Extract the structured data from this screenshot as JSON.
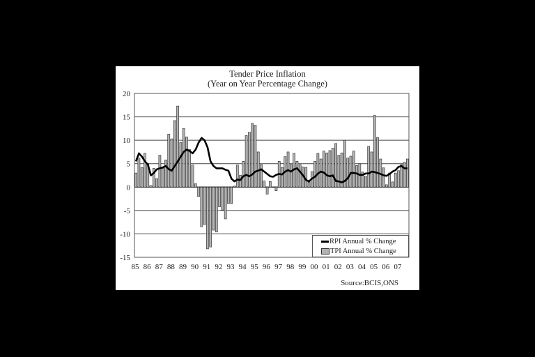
{
  "chart_data": {
    "type": "bar",
    "title": "Tender Price Inflation",
    "subtitle": "(Year on Year Percentage Change)",
    "xlabel": "",
    "ylabel": "",
    "ylim": [
      -15,
      20
    ],
    "yticks": [
      20,
      15,
      10,
      5,
      0,
      -5,
      -10,
      -15
    ],
    "grid": "horizontal",
    "legend_position": "lower right inside plot",
    "categories": [
      "85",
      "86",
      "87",
      "88",
      "89",
      "90",
      "91",
      "92",
      "93",
      "94",
      "95",
      "96",
      "97",
      "98",
      "99",
      "00",
      "01",
      "02",
      "03",
      "04",
      "05",
      "06",
      "07"
    ],
    "frequency": "quarterly",
    "series": [
      {
        "name": "TPI Annual % Change",
        "type": "bar",
        "color": "#b3b3b3",
        "values": [
          3.0,
          6.2,
          4.2,
          7.2,
          5.0,
          0.3,
          4.0,
          1.8,
          6.8,
          4.0,
          5.8,
          11.3,
          10.3,
          14.2,
          17.3,
          9.5,
          12.5,
          10.7,
          8.0,
          4.7,
          0.7,
          -2.0,
          -8.5,
          -8.0,
          -13.2,
          -12.8,
          -9.2,
          -9.6,
          -4.2,
          -4.9,
          -6.8,
          -3.5,
          -3.5,
          0.2,
          4.7,
          2.5,
          5.5,
          11.0,
          11.7,
          13.6,
          13.2,
          7.5,
          4.8,
          1.3,
          -1.5,
          1.2,
          0.0,
          -0.8,
          5.5,
          4.2,
          6.5,
          7.5,
          4.8,
          7.2,
          5.5,
          4.8,
          4.3,
          4.2,
          1.0,
          3.3,
          5.5,
          7.2,
          6.0,
          7.7,
          7.3,
          7.8,
          8.3,
          9.3,
          6.8,
          7.3,
          10.0,
          6.2,
          6.6,
          7.7,
          4.6,
          5.0,
          3.2,
          2.3,
          8.7,
          7.5,
          15.3,
          10.6,
          6.0,
          4.1,
          0.5,
          3.0,
          1.1,
          3.0,
          3.5,
          4.8,
          5.3,
          6.0
        ]
      },
      {
        "name": "RPI Annual % Change",
        "type": "line",
        "color": "#000000",
        "values": [
          5.5,
          7.2,
          6.5,
          5.5,
          4.8,
          2.5,
          3.0,
          3.8,
          4.0,
          4.2,
          4.5,
          3.8,
          3.5,
          4.5,
          5.5,
          6.5,
          7.5,
          8.0,
          7.7,
          7.2,
          8.0,
          9.5,
          10.5,
          10.0,
          8.5,
          5.5,
          4.5,
          4.0,
          4.0,
          4.0,
          3.7,
          3.5,
          1.8,
          1.2,
          1.6,
          1.5,
          2.3,
          2.6,
          2.3,
          2.7,
          3.3,
          3.5,
          3.8,
          3.3,
          2.8,
          2.3,
          2.2,
          2.6,
          2.8,
          2.7,
          3.3,
          3.6,
          3.3,
          3.8,
          4.0,
          3.3,
          2.5,
          1.5,
          1.2,
          1.8,
          2.2,
          2.9,
          3.3,
          3.1,
          2.5,
          2.3,
          2.5,
          1.3,
          1.2,
          1.0,
          1.3,
          1.9,
          3.0,
          3.0,
          2.9,
          2.6,
          2.6,
          2.9,
          2.9,
          3.3,
          3.2,
          3.0,
          2.8,
          2.5,
          2.4,
          2.8,
          3.3,
          3.6,
          4.3,
          4.5,
          4.0,
          4.0
        ]
      }
    ],
    "annotations": [
      "Source:BCIS,ONS"
    ]
  },
  "titles": {
    "line1": "Tender Price Inflation",
    "line2": "(Year on Year Percentage Change)"
  },
  "legend": {
    "rpi_label": "RPI Annual % Change",
    "tpi_label": "TPI Annual % Change"
  },
  "source": "Source:BCIS,ONS"
}
